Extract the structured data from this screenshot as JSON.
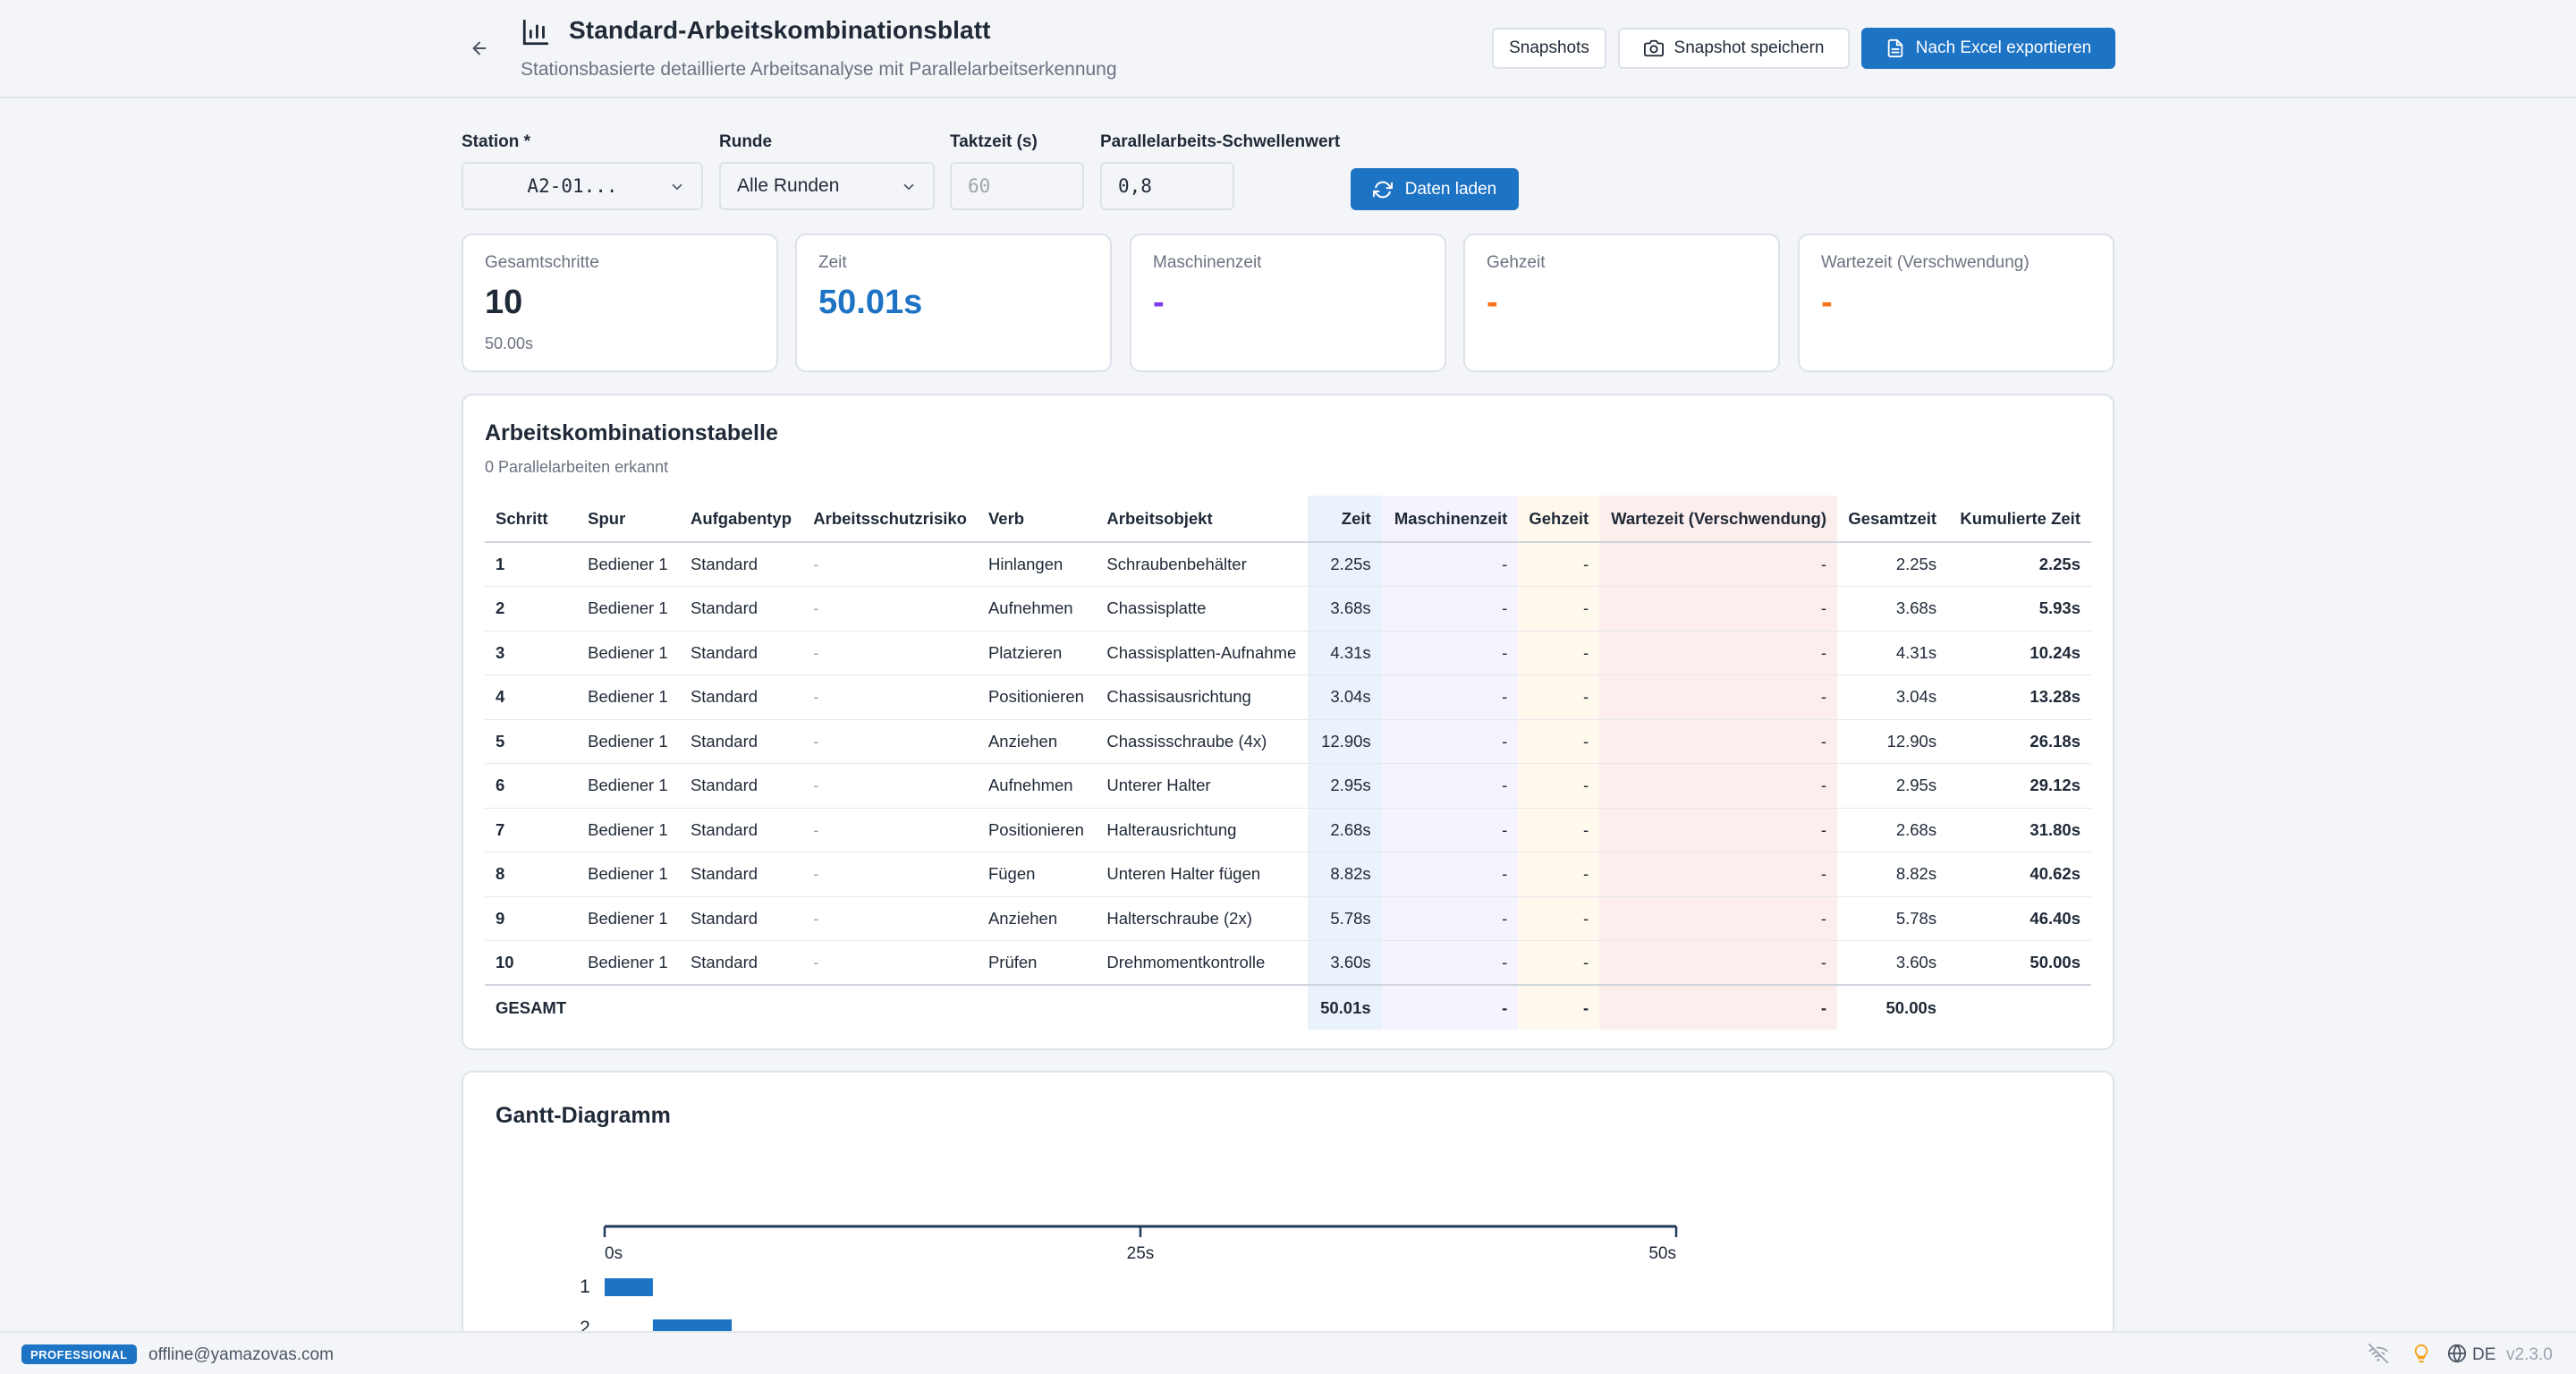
{
  "header": {
    "title": "Standard-Arbeitskombinationsblatt",
    "subtitle": "Stationsbasierte detaillierte Arbeitsanalyse mit Parallelarbeitserkennung",
    "btn_snapshots": "Snapshots",
    "btn_save_snapshot": "Snapshot speichern",
    "btn_export": "Nach Excel exportieren"
  },
  "filters": {
    "station_label": "Station *",
    "station_value": "A2-01...",
    "round_label": "Runde",
    "round_value": "Alle Runden",
    "takt_label": "Taktzeit (s)",
    "takt_placeholder": "60",
    "threshold_label": "Parallelarbeits-Schwellenwert",
    "threshold_value": "0,8",
    "load_label": "Daten laden"
  },
  "stats": {
    "total_steps_label": "Gesamtschritte",
    "total_steps_value": "10",
    "total_steps_sub": "50.00s",
    "time_label": "Zeit",
    "time_value": "50.01s",
    "machine_label": "Maschinenzeit",
    "machine_value": "-",
    "walk_label": "Gehzeit",
    "walk_value": "-",
    "wait_label": "Wartezeit (Verschwendung)",
    "wait_value": "-"
  },
  "colors": {
    "primary": "#1d73c4",
    "machine": "#7c3aed",
    "walk": "#f97316",
    "wait": "#f97316"
  },
  "table": {
    "title": "Arbeitskombinationstabelle",
    "subtitle": "0 Parallelarbeiten erkannt",
    "headers": {
      "step": "Schritt",
      "lane": "Spur",
      "tasktype": "Aufgabentyp",
      "risk": "Arbeitsschutzrisiko",
      "verb": "Verb",
      "object": "Arbeitsobjekt",
      "time": "Zeit",
      "machine": "Maschinenzeit",
      "walk": "Gehzeit",
      "wait": "Wartezeit (Verschwendung)",
      "total": "Gesamtzeit",
      "cumulative": "Kumulierte Zeit"
    },
    "rows": [
      {
        "step": "1",
        "lane": "Bediener 1",
        "type": "Standard",
        "risk": "-",
        "verb": "Hinlangen",
        "object": "Schraubenbehälter",
        "time": "2.25s",
        "machine": "-",
        "walk": "-",
        "wait": "-",
        "total": "2.25s",
        "cum": "2.25s"
      },
      {
        "step": "2",
        "lane": "Bediener 1",
        "type": "Standard",
        "risk": "-",
        "verb": "Aufnehmen",
        "object": "Chassisplatte",
        "time": "3.68s",
        "machine": "-",
        "walk": "-",
        "wait": "-",
        "total": "3.68s",
        "cum": "5.93s"
      },
      {
        "step": "3",
        "lane": "Bediener 1",
        "type": "Standard",
        "risk": "-",
        "verb": "Platzieren",
        "object": "Chassisplatten-Aufnahme",
        "time": "4.31s",
        "machine": "-",
        "walk": "-",
        "wait": "-",
        "total": "4.31s",
        "cum": "10.24s"
      },
      {
        "step": "4",
        "lane": "Bediener 1",
        "type": "Standard",
        "risk": "-",
        "verb": "Positionieren",
        "object": "Chassisausrichtung",
        "time": "3.04s",
        "machine": "-",
        "walk": "-",
        "wait": "-",
        "total": "3.04s",
        "cum": "13.28s"
      },
      {
        "step": "5",
        "lane": "Bediener 1",
        "type": "Standard",
        "risk": "-",
        "verb": "Anziehen",
        "object": "Chassisschraube (4x)",
        "time": "12.90s",
        "machine": "-",
        "walk": "-",
        "wait": "-",
        "total": "12.90s",
        "cum": "26.18s"
      },
      {
        "step": "6",
        "lane": "Bediener 1",
        "type": "Standard",
        "risk": "-",
        "verb": "Aufnehmen",
        "object": "Unterer Halter",
        "time": "2.95s",
        "machine": "-",
        "walk": "-",
        "wait": "-",
        "total": "2.95s",
        "cum": "29.12s"
      },
      {
        "step": "7",
        "lane": "Bediener 1",
        "type": "Standard",
        "risk": "-",
        "verb": "Positionieren",
        "object": "Halterausrichtung",
        "time": "2.68s",
        "machine": "-",
        "walk": "-",
        "wait": "-",
        "total": "2.68s",
        "cum": "31.80s"
      },
      {
        "step": "8",
        "lane": "Bediener 1",
        "type": "Standard",
        "risk": "-",
        "verb": "Fügen",
        "object": "Unteren Halter fügen",
        "time": "8.82s",
        "machine": "-",
        "walk": "-",
        "wait": "-",
        "total": "8.82s",
        "cum": "40.62s"
      },
      {
        "step": "9",
        "lane": "Bediener 1",
        "type": "Standard",
        "risk": "-",
        "verb": "Anziehen",
        "object": "Halterschraube (2x)",
        "time": "5.78s",
        "machine": "-",
        "walk": "-",
        "wait": "-",
        "total": "5.78s",
        "cum": "46.40s"
      },
      {
        "step": "10",
        "lane": "Bediener 1",
        "type": "Standard",
        "risk": "-",
        "verb": "Prüfen",
        "object": "Drehmomentkontrolle",
        "time": "3.60s",
        "machine": "-",
        "walk": "-",
        "wait": "-",
        "total": "3.60s",
        "cum": "50.00s"
      }
    ],
    "total_row": {
      "label": "GESAMT",
      "time": "50.01s",
      "machine": "-",
      "walk": "-",
      "wait": "-",
      "total": "50.00s"
    }
  },
  "gantt": {
    "title": "Gantt-Diagramm"
  },
  "chart_data": {
    "type": "bar",
    "xlim": [
      0,
      50
    ],
    "xticks": [
      "0s",
      "25s",
      "50s"
    ],
    "tick_values": [
      0,
      25,
      50
    ],
    "bars": [
      {
        "label": "1",
        "start": 0,
        "end": 2.25
      },
      {
        "label": "2",
        "start": 2.25,
        "end": 5.93
      }
    ]
  },
  "footer": {
    "badge": "PROFESSIONAL",
    "email": "offline@yamazovas.com",
    "lang": "DE",
    "version": "v2.3.0"
  }
}
